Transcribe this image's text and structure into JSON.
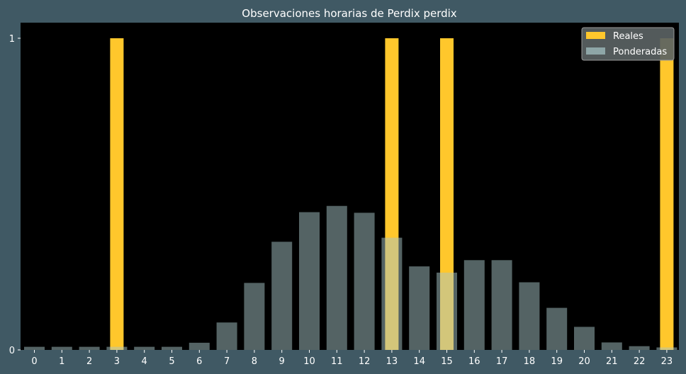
{
  "chart_data": {
    "type": "bar",
    "title": "Observaciones horarias de Perdix perdix",
    "xlabel": "",
    "ylabel": "",
    "categories": [
      "0",
      "1",
      "2",
      "3",
      "4",
      "5",
      "6",
      "7",
      "8",
      "9",
      "10",
      "11",
      "12",
      "13",
      "14",
      "15",
      "16",
      "17",
      "18",
      "19",
      "20",
      "21",
      "22",
      "23"
    ],
    "yticks": [
      "0",
      "1"
    ],
    "ylim": [
      0,
      1.05
    ],
    "grid": false,
    "legend_position": "top-right",
    "series": [
      {
        "name": "Reales",
        "color": "#ffc72c",
        "values": [
          0,
          0,
          0,
          1,
          0,
          0,
          0,
          0,
          0,
          0,
          0,
          0,
          0,
          1,
          0,
          1,
          0,
          0,
          0,
          0,
          0,
          0,
          0,
          1
        ]
      },
      {
        "name": "Ponderadas",
        "color": "#a8c6c8",
        "values": [
          0.01,
          0.01,
          0.01,
          0.01,
          0.01,
          0.01,
          0.023,
          0.088,
          0.215,
          0.347,
          0.442,
          0.462,
          0.44,
          0.36,
          0.268,
          0.248,
          0.288,
          0.288,
          0.217,
          0.135,
          0.074,
          0.024,
          0.012,
          0.008
        ]
      }
    ]
  }
}
